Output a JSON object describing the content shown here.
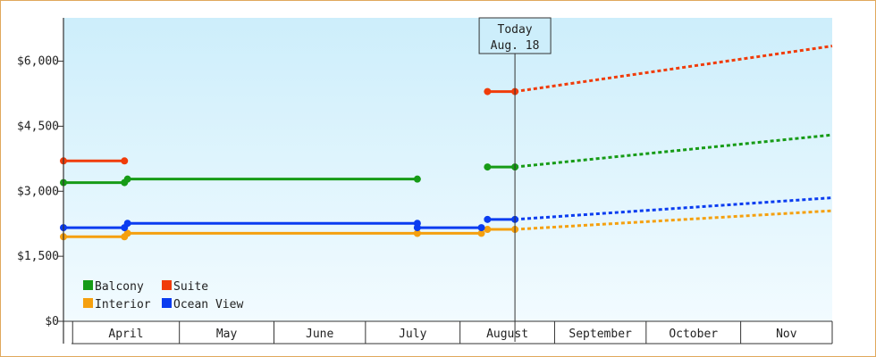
{
  "chart_data": {
    "type": "line",
    "title": "",
    "xlabel": "",
    "ylabel": "",
    "ylim": [
      0,
      7000
    ],
    "y_ticks": [
      0,
      1500,
      3000,
      4500,
      6000
    ],
    "y_tick_labels": [
      "$0",
      "$1,500",
      "$3,000",
      "$4,500",
      "$6,000"
    ],
    "x_range": [
      "2024-03-23",
      "2024-11-30"
    ],
    "months": [
      {
        "label": "April",
        "start": "2024-03-26",
        "end": "2024-04-30"
      },
      {
        "label": "May",
        "start": "2024-04-30",
        "end": "2024-05-31"
      },
      {
        "label": "June",
        "start": "2024-05-31",
        "end": "2024-06-30"
      },
      {
        "label": "July",
        "start": "2024-06-30",
        "end": "2024-07-31"
      },
      {
        "label": "August",
        "start": "2024-07-31",
        "end": "2024-08-31"
      },
      {
        "label": "September",
        "start": "2024-08-31",
        "end": "2024-09-30"
      },
      {
        "label": "October",
        "start": "2024-09-30",
        "end": "2024-10-31"
      },
      {
        "label": "Nov",
        "start": "2024-10-31",
        "end": "2024-11-30"
      }
    ],
    "today": {
      "date": "2024-08-18",
      "label_line1": "Today",
      "label_line2": "Aug. 18"
    },
    "legend": {
      "placement": "bottom-left"
    },
    "background_gradient": [
      "#cdeefb",
      "#f2fbff"
    ],
    "series": [
      {
        "name": "Balcony",
        "color": "#169b16",
        "segments": [
          {
            "points": [
              [
                "2024-03-23",
                3200
              ],
              [
                "2024-04-12",
                3200
              ]
            ]
          },
          {
            "points": [
              [
                "2024-04-13",
                3280
              ],
              [
                "2024-07-17",
                3280
              ]
            ]
          },
          {
            "points": [
              [
                "2024-08-09",
                3560
              ],
              [
                "2024-08-18",
                3560
              ]
            ]
          }
        ],
        "forecast": [
          [
            "2024-08-18",
            3560
          ],
          [
            "2024-11-30",
            4300
          ]
        ]
      },
      {
        "name": "Suite",
        "color": "#f03c0a",
        "segments": [
          {
            "points": [
              [
                "2024-03-23",
                3700
              ],
              [
                "2024-04-12",
                3700
              ]
            ]
          },
          {
            "points": [
              [
                "2024-08-09",
                5300
              ],
              [
                "2024-08-18",
                5300
              ]
            ]
          }
        ],
        "forecast": [
          [
            "2024-08-18",
            5300
          ],
          [
            "2024-11-30",
            6350
          ]
        ]
      },
      {
        "name": "Interior",
        "color": "#f5a00f",
        "segments": [
          {
            "points": [
              [
                "2024-03-23",
                1950
              ],
              [
                "2024-04-12",
                1950
              ]
            ]
          },
          {
            "points": [
              [
                "2024-04-13",
                2030
              ],
              [
                "2024-07-17",
                2030
              ]
            ]
          },
          {
            "points": [
              [
                "2024-07-17",
                2030
              ],
              [
                "2024-08-07",
                2030
              ]
            ]
          },
          {
            "points": [
              [
                "2024-08-09",
                2120
              ],
              [
                "2024-08-18",
                2120
              ]
            ]
          }
        ],
        "forecast": [
          [
            "2024-08-18",
            2120
          ],
          [
            "2024-11-30",
            2550
          ]
        ]
      },
      {
        "name": "Ocean View",
        "color": "#0a3cf0",
        "segments": [
          {
            "points": [
              [
                "2024-03-23",
                2160
              ],
              [
                "2024-04-12",
                2160
              ]
            ]
          },
          {
            "points": [
              [
                "2024-04-13",
                2260
              ],
              [
                "2024-07-17",
                2260
              ]
            ]
          },
          {
            "points": [
              [
                "2024-07-17",
                2160
              ],
              [
                "2024-08-07",
                2160
              ]
            ]
          },
          {
            "points": [
              [
                "2024-08-09",
                2350
              ],
              [
                "2024-08-18",
                2350
              ]
            ]
          }
        ],
        "forecast": [
          [
            "2024-08-18",
            2350
          ],
          [
            "2024-11-30",
            2850
          ]
        ]
      }
    ]
  }
}
